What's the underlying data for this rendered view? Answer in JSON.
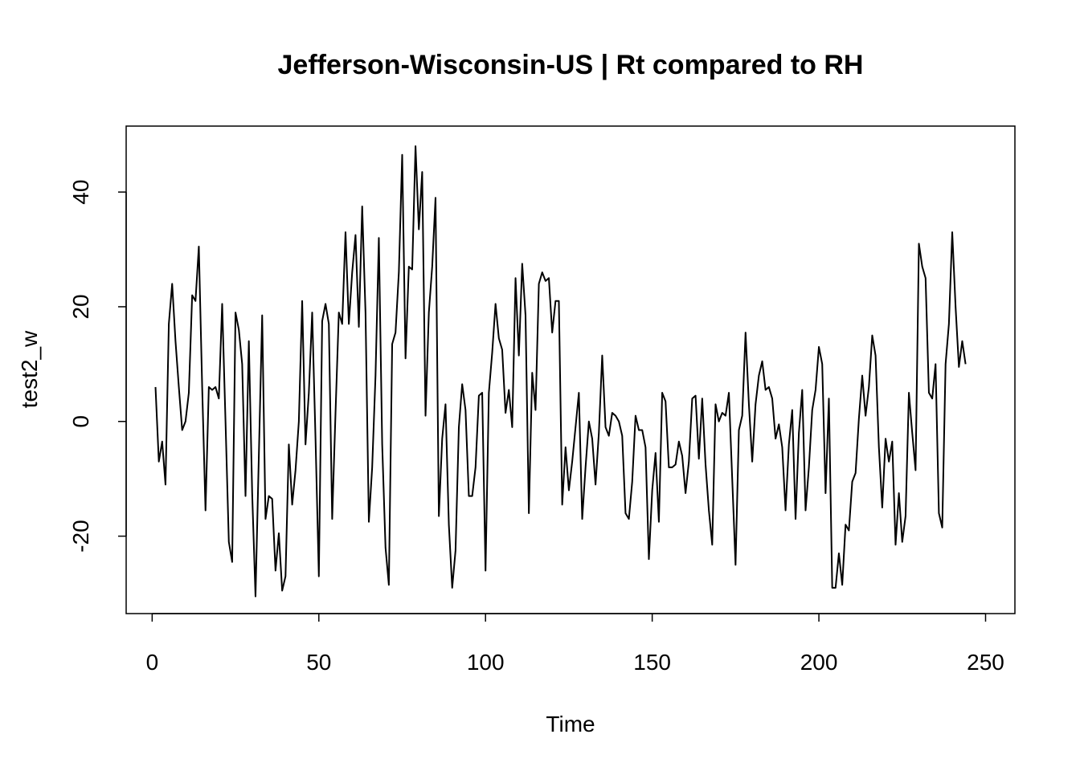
{
  "chart_data": {
    "type": "line",
    "title": "Jefferson-Wisconsin-US | Rt compared to RH",
    "xlabel": "Time",
    "ylabel": "test2_w",
    "xlim": [
      -7.8,
      258.8
    ],
    "ylim": [
      -33.5,
      51.5
    ],
    "x_ticks": [
      0,
      50,
      100,
      150,
      200,
      250
    ],
    "y_ticks": [
      -20,
      0,
      20,
      40
    ],
    "grid": false,
    "legend": "none",
    "line_color": "#000000",
    "series": [
      {
        "x_start": 1,
        "values": [
          6,
          -7,
          -3.5,
          -11,
          17,
          24,
          14,
          6,
          -1.5,
          0,
          5,
          22,
          21,
          30.5,
          6,
          -15.5,
          6,
          5.5,
          6,
          4,
          20.5,
          0,
          -21,
          -24.5,
          19,
          16,
          10,
          -13,
          14,
          -12.5,
          -30.5,
          -6,
          18.5,
          -17,
          -13,
          -13.5,
          -26,
          -19.5,
          -29.5,
          -27,
          -4,
          -14.5,
          -8.5,
          0,
          21,
          -4,
          5,
          19,
          -3,
          -27,
          17.5,
          20.5,
          17,
          -17,
          1.5,
          19,
          17,
          33,
          17,
          26,
          32.5,
          16.5,
          37.5,
          19,
          -17.5,
          -8,
          8,
          32,
          -4,
          -22,
          -28.5,
          13.5,
          15.5,
          26,
          46.5,
          11,
          27,
          26.5,
          48,
          33.5,
          43.5,
          1,
          19,
          27,
          39,
          -16.5,
          -3,
          3,
          -18,
          -29,
          -22.5,
          -1,
          6.5,
          2,
          -13,
          -13,
          -8,
          4.5,
          5,
          -26,
          5,
          12,
          20.5,
          14.5,
          12.5,
          1.5,
          5.5,
          -1,
          25,
          11.5,
          27.5,
          18.5,
          -16,
          8.5,
          2,
          24,
          26,
          24.5,
          25,
          15.5,
          21,
          21,
          -14.5,
          -4.5,
          -12,
          -7,
          -1,
          5,
          -17,
          -8,
          0,
          -3,
          -11,
          -2,
          11.5,
          -1,
          -2.5,
          1.5,
          1,
          0,
          -2.5,
          -16,
          -17,
          -10.5,
          1,
          -1.5,
          -1.5,
          -4.5,
          -24,
          -12,
          -5.5,
          -17.5,
          5,
          3.5,
          -8,
          -8,
          -7.5,
          -3.5,
          -6,
          -12.5,
          -7,
          4,
          4.5,
          -6.5,
          4,
          -7.5,
          -15.5,
          -21.5,
          3,
          0,
          1.5,
          1,
          5,
          -10,
          -25,
          -1.5,
          1,
          15.5,
          3,
          -7,
          3,
          8,
          10.5,
          5.5,
          6,
          4,
          -3,
          -0.5,
          -4.5,
          -15.5,
          -4,
          2,
          -17,
          -2,
          5.5,
          -15.5,
          -8,
          2,
          5.5,
          13,
          10,
          -12.5,
          4,
          -29,
          -29,
          -23,
          -28.5,
          -18,
          -19,
          -10.5,
          -9,
          0.5,
          8,
          1,
          6,
          15,
          11.5,
          -4.5,
          -15,
          -3,
          -7,
          -3.5,
          -21.5,
          -12.5,
          -21,
          -16.5,
          5,
          -2,
          -8.5,
          31,
          27,
          25,
          5,
          4,
          10,
          -16,
          -18.5,
          10,
          17,
          33,
          20,
          9.5,
          14,
          10
        ]
      }
    ]
  }
}
